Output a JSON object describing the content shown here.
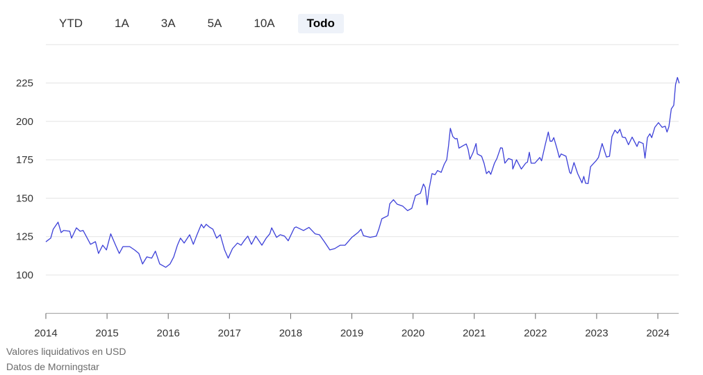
{
  "range_buttons": [
    {
      "label": "YTD",
      "active": false
    },
    {
      "label": "1A",
      "active": false
    },
    {
      "label": "3A",
      "active": false
    },
    {
      "label": "5A",
      "active": false
    },
    {
      "label": "10A",
      "active": false
    },
    {
      "label": "Todo",
      "active": true
    }
  ],
  "footer": {
    "currency_note": "Valores liquidativos en USD",
    "source": "Datos de Morningstar"
  },
  "chart_data": {
    "type": "line",
    "title": "",
    "xlabel": "",
    "ylabel": "",
    "xlim": [
      2014,
      2024.35
    ],
    "ylim": [
      75,
      250
    ],
    "x_ticks": [
      "2014",
      "2015",
      "2016",
      "2017",
      "2018",
      "2019",
      "2020",
      "2021",
      "2022",
      "2023",
      "2024"
    ],
    "y_ticks": [
      100,
      125,
      150,
      175,
      200,
      225
    ],
    "grid": "horizontal",
    "line_color": "#3b3fd8",
    "x": [
      2014.0,
      2014.08,
      2014.12,
      2014.2,
      2014.25,
      2014.29,
      2014.39,
      2014.42,
      2014.5,
      2014.56,
      2014.61,
      2014.73,
      2014.81,
      2014.86,
      2014.93,
      2014.99,
      2015.06,
      2015.14,
      2015.2,
      2015.26,
      2015.37,
      2015.45,
      2015.52,
      2015.58,
      2015.65,
      2015.73,
      2015.79,
      2015.86,
      2015.96,
      2016.03,
      2016.09,
      2016.15,
      2016.2,
      2016.26,
      2016.35,
      2016.41,
      2016.47,
      2016.54,
      2016.58,
      2016.62,
      2016.67,
      2016.73,
      2016.79,
      2016.85,
      2016.92,
      2016.98,
      2017.05,
      2017.13,
      2017.19,
      2017.24,
      2017.3,
      2017.36,
      2017.43,
      2017.53,
      2017.6,
      2017.66,
      2017.69,
      2017.77,
      2017.83,
      2017.9,
      2017.96,
      2018.06,
      2018.09,
      2018.21,
      2018.3,
      2018.4,
      2018.47,
      2018.55,
      2018.64,
      2018.72,
      2018.81,
      2018.89,
      2019.0,
      2019.1,
      2019.15,
      2019.19,
      2019.3,
      2019.4,
      2019.44,
      2019.49,
      2019.59,
      2019.62,
      2019.68,
      2019.74,
      2019.83,
      2019.91,
      2019.98,
      2020.04,
      2020.12,
      2020.17,
      2020.2,
      2020.23,
      2020.26,
      2020.31,
      2020.36,
      2020.4,
      2020.46,
      2020.51,
      2020.55,
      2020.58,
      2020.61,
      2020.65,
      2020.69,
      2020.72,
      2020.75,
      2020.82,
      2020.87,
      2020.9,
      2020.93,
      2020.98,
      2021.03,
      2021.05,
      2021.12,
      2021.16,
      2021.2,
      2021.24,
      2021.27,
      2021.33,
      2021.37,
      2021.43,
      2021.46,
      2021.5,
      2021.56,
      2021.62,
      2021.63,
      2021.69,
      2021.77,
      2021.84,
      2021.87,
      2021.9,
      2021.93,
      2021.99,
      2022.07,
      2022.1,
      2022.16,
      2022.21,
      2022.24,
      2022.27,
      2022.3,
      2022.35,
      2022.39,
      2022.42,
      2022.5,
      2022.56,
      2022.58,
      2022.63,
      2022.69,
      2022.76,
      2022.79,
      2022.82,
      2022.86,
      2022.9,
      2022.99,
      2023.03,
      2023.09,
      2023.16,
      2023.21,
      2023.25,
      2023.3,
      2023.34,
      2023.38,
      2023.42,
      2023.47,
      2023.52,
      2023.58,
      2023.66,
      2023.69,
      2023.76,
      2023.79,
      2023.83,
      2023.87,
      2023.9,
      2023.95,
      2024.01,
      2024.07,
      2024.12,
      2024.15,
      2024.18,
      2024.22,
      2024.26,
      2024.29,
      2024.32,
      2024.35
    ],
    "y": [
      121.6,
      124,
      129.8,
      134.4,
      127.6,
      129,
      128.5,
      124,
      130.7,
      128.5,
      129,
      120,
      121.7,
      114,
      119.4,
      116.3,
      126.8,
      119.4,
      114,
      118.5,
      118.5,
      116.3,
      114,
      107.2,
      111.8,
      111,
      115.5,
      107.2,
      105,
      107.2,
      111.8,
      119.4,
      124,
      120.8,
      126.2,
      120,
      126.2,
      133,
      130.7,
      133,
      131.3,
      129.8,
      124,
      126.2,
      116.3,
      111,
      117.2,
      120.8,
      119.4,
      122.3,
      125.3,
      120,
      125.3,
      119.4,
      124,
      126.8,
      130.7,
      124.5,
      126.2,
      125.3,
      122.3,
      130.7,
      131.3,
      129,
      131,
      126.8,
      126.2,
      121.7,
      116.3,
      117.2,
      119.4,
      119.4,
      124.5,
      127.6,
      129.8,
      125.6,
      124.5,
      125.3,
      129.8,
      136.6,
      138.6,
      146.4,
      149,
      146.1,
      144.9,
      141.9,
      143.4,
      151.7,
      153.2,
      159.2,
      157,
      145.7,
      155.5,
      166,
      165.3,
      168,
      166.8,
      172.1,
      175.1,
      184.2,
      195.5,
      190.1,
      188.6,
      188.9,
      182.6,
      184.2,
      185.3,
      181.8,
      175.3,
      179.6,
      185.6,
      178.8,
      177.3,
      172.8,
      166,
      167.6,
      165.5,
      172.8,
      175.8,
      182.8,
      182.6,
      172.8,
      175.8,
      175,
      169,
      175,
      169,
      172.8,
      173.5,
      179.9,
      172.8,
      172.8,
      176.5,
      174.3,
      184.8,
      193.1,
      187.1,
      187.1,
      189.4,
      182.6,
      176.5,
      178.8,
      177.3,
      166.8,
      166,
      173.2,
      166,
      160,
      164.2,
      159.7,
      159.5,
      170.5,
      174.3,
      176.5,
      185.6,
      176.8,
      177.3,
      190.1,
      194.3,
      192.3,
      194.9,
      189.8,
      189.4,
      184.8,
      189.8,
      183.7,
      186.8,
      185.6,
      176.1,
      189.4,
      191.9,
      189.4,
      196.1,
      199.2,
      196.1,
      196.9,
      193.1,
      196.5,
      208.2,
      210.5,
      224,
      228.6,
      224.8
    ]
  }
}
